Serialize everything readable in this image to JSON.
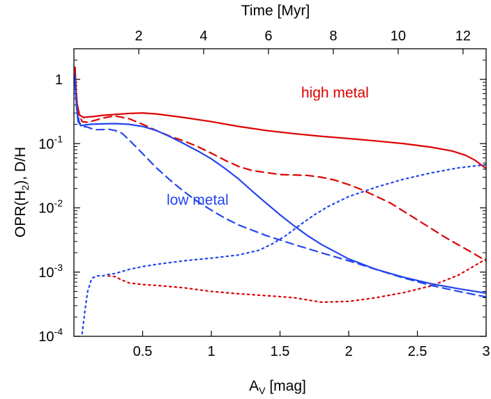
{
  "chart_data": {
    "type": "line",
    "xlabel_main": "A",
    "xlabel_sub": "V",
    "xlabel_rest": " [mag]",
    "ylabel_pre": "OPR(H",
    "ylabel_sub": "2",
    "ylabel_post": "), D/H",
    "x2label": "Time [Myr]",
    "xlim": [
      0.0,
      3.0
    ],
    "ylim": [
      0.0001,
      3.0
    ],
    "y_scale": "log",
    "x_ticks": [
      "0.5",
      "1",
      "1.5",
      "2",
      "2.5",
      "3"
    ],
    "x_tick_values": [
      0.5,
      1.0,
      1.5,
      2.0,
      2.5,
      3.0
    ],
    "x2_ticks": [
      "2",
      "4",
      "6",
      "8",
      "10",
      "12"
    ],
    "x2_tick_xvalues": [
      0.472,
      0.944,
      1.416,
      1.888,
      2.36,
      2.832
    ],
    "y_ticks": [
      {
        "value": 0.0001,
        "base": "10",
        "exp": "-4"
      },
      {
        "value": 0.001,
        "base": "10",
        "exp": "-3"
      },
      {
        "value": 0.01,
        "base": "10",
        "exp": "-2"
      },
      {
        "value": 0.1,
        "base": "10",
        "exp": "-1"
      },
      {
        "value": 1,
        "base": "1",
        "exp": ""
      }
    ],
    "annotations": [
      {
        "text": "high metal",
        "x": 1.9,
        "y": 0.52,
        "color": "#dd0000"
      },
      {
        "text": "low metal",
        "x": 0.9,
        "y": 0.0112,
        "color": "#2244ee"
      }
    ],
    "series": [
      {
        "color": "#dd0000",
        "style": "solid",
        "x": [
          0.008,
          0.02,
          0.04,
          0.07,
          0.1,
          0.15,
          0.2,
          0.3,
          0.4,
          0.5,
          0.6,
          0.8,
          1.0,
          1.2,
          1.4,
          1.6,
          1.8,
          2.0,
          2.2,
          2.4,
          2.6,
          2.75,
          2.85,
          2.92,
          3.0
        ],
        "y": [
          1.55,
          0.45,
          0.28,
          0.255,
          0.26,
          0.265,
          0.275,
          0.285,
          0.295,
          0.3,
          0.29,
          0.255,
          0.22,
          0.185,
          0.16,
          0.143,
          0.13,
          0.12,
          0.11,
          0.1,
          0.088,
          0.077,
          0.066,
          0.055,
          0.041
        ]
      },
      {
        "color": "#dd0000",
        "style": "dashed",
        "x": [
          0.01,
          0.03,
          0.06,
          0.1,
          0.15,
          0.2,
          0.25,
          0.3,
          0.4,
          0.5,
          0.6,
          0.7,
          0.8,
          0.9,
          1.0,
          1.1,
          1.2,
          1.3,
          1.5,
          1.7,
          1.8,
          1.9,
          2.0,
          2.1,
          2.3,
          2.5,
          2.7,
          2.85,
          3.0
        ],
        "y": [
          0.9,
          0.3,
          0.22,
          0.215,
          0.23,
          0.245,
          0.26,
          0.27,
          0.245,
          0.2,
          0.16,
          0.13,
          0.11,
          0.09,
          0.071,
          0.055,
          0.044,
          0.038,
          0.033,
          0.032,
          0.03,
          0.027,
          0.023,
          0.019,
          0.012,
          0.0065,
          0.0035,
          0.0023,
          0.0015
        ]
      },
      {
        "color": "#dd0000",
        "style": "dotted",
        "x": [
          0.25,
          0.3,
          0.35,
          0.4,
          0.5,
          0.6,
          0.8,
          1.0,
          1.2,
          1.4,
          1.6,
          1.8,
          2.0,
          2.2,
          2.4,
          2.6,
          2.8,
          3.0
        ],
        "y": [
          0.00087,
          0.00085,
          0.00075,
          0.00068,
          0.00064,
          0.00062,
          0.00057,
          0.0005,
          0.00046,
          0.00043,
          0.0004,
          0.00034,
          0.00035,
          0.0004,
          0.00048,
          0.00061,
          0.0009,
          0.0016
        ]
      },
      {
        "color": "#2244ee",
        "style": "solid",
        "x": [
          0.005,
          0.015,
          0.03,
          0.05,
          0.08,
          0.12,
          0.2,
          0.3,
          0.4,
          0.5,
          0.6,
          0.7,
          0.8,
          0.9,
          1.0,
          1.1,
          1.2,
          1.3,
          1.4,
          1.5,
          1.6,
          1.7,
          1.8,
          2.0,
          2.2,
          2.4,
          2.6,
          2.8,
          3.0
        ],
        "y": [
          1.2,
          0.5,
          0.22,
          0.19,
          0.195,
          0.2,
          0.203,
          0.205,
          0.2,
          0.185,
          0.16,
          0.128,
          0.1,
          0.077,
          0.058,
          0.041,
          0.028,
          0.018,
          0.0118,
          0.0078,
          0.0053,
          0.0037,
          0.0027,
          0.0016,
          0.0011,
          0.00083,
          0.00066,
          0.00055,
          0.00047
        ]
      },
      {
        "color": "#2244ee",
        "style": "dashed",
        "x": [
          0.008,
          0.02,
          0.04,
          0.07,
          0.1,
          0.15,
          0.2,
          0.25,
          0.3,
          0.35,
          0.4,
          0.5,
          0.6,
          0.7,
          0.8,
          0.9,
          1.0,
          1.1,
          1.2,
          1.4,
          1.6,
          1.8,
          2.0,
          2.2,
          2.4,
          2.6,
          2.8,
          3.0
        ],
        "y": [
          1.0,
          0.35,
          0.21,
          0.185,
          0.18,
          0.165,
          0.165,
          0.168,
          0.16,
          0.145,
          0.115,
          0.07,
          0.042,
          0.027,
          0.018,
          0.0125,
          0.0092,
          0.0069,
          0.0054,
          0.0037,
          0.0027,
          0.002,
          0.0015,
          0.0011,
          0.00081,
          0.00062,
          0.0005,
          0.00041
        ]
      },
      {
        "color": "#2244ee",
        "style": "dotted",
        "x": [
          0.06,
          0.08,
          0.1,
          0.13,
          0.17,
          0.2,
          0.25,
          0.3,
          0.4,
          0.5,
          0.6,
          0.8,
          1.0,
          1.2,
          1.35,
          1.45,
          1.55,
          1.65,
          1.75,
          1.85,
          2.0,
          2.2,
          2.4,
          2.6,
          2.8,
          3.0
        ],
        "y": [
          0.00011,
          0.00025,
          0.0005,
          0.0008,
          0.00088,
          0.00086,
          0.00092,
          0.00095,
          0.0011,
          0.00122,
          0.00132,
          0.0015,
          0.00165,
          0.00185,
          0.0022,
          0.0028,
          0.0038,
          0.0055,
          0.0078,
          0.0105,
          0.015,
          0.021,
          0.028,
          0.035,
          0.042,
          0.047
        ]
      }
    ]
  }
}
